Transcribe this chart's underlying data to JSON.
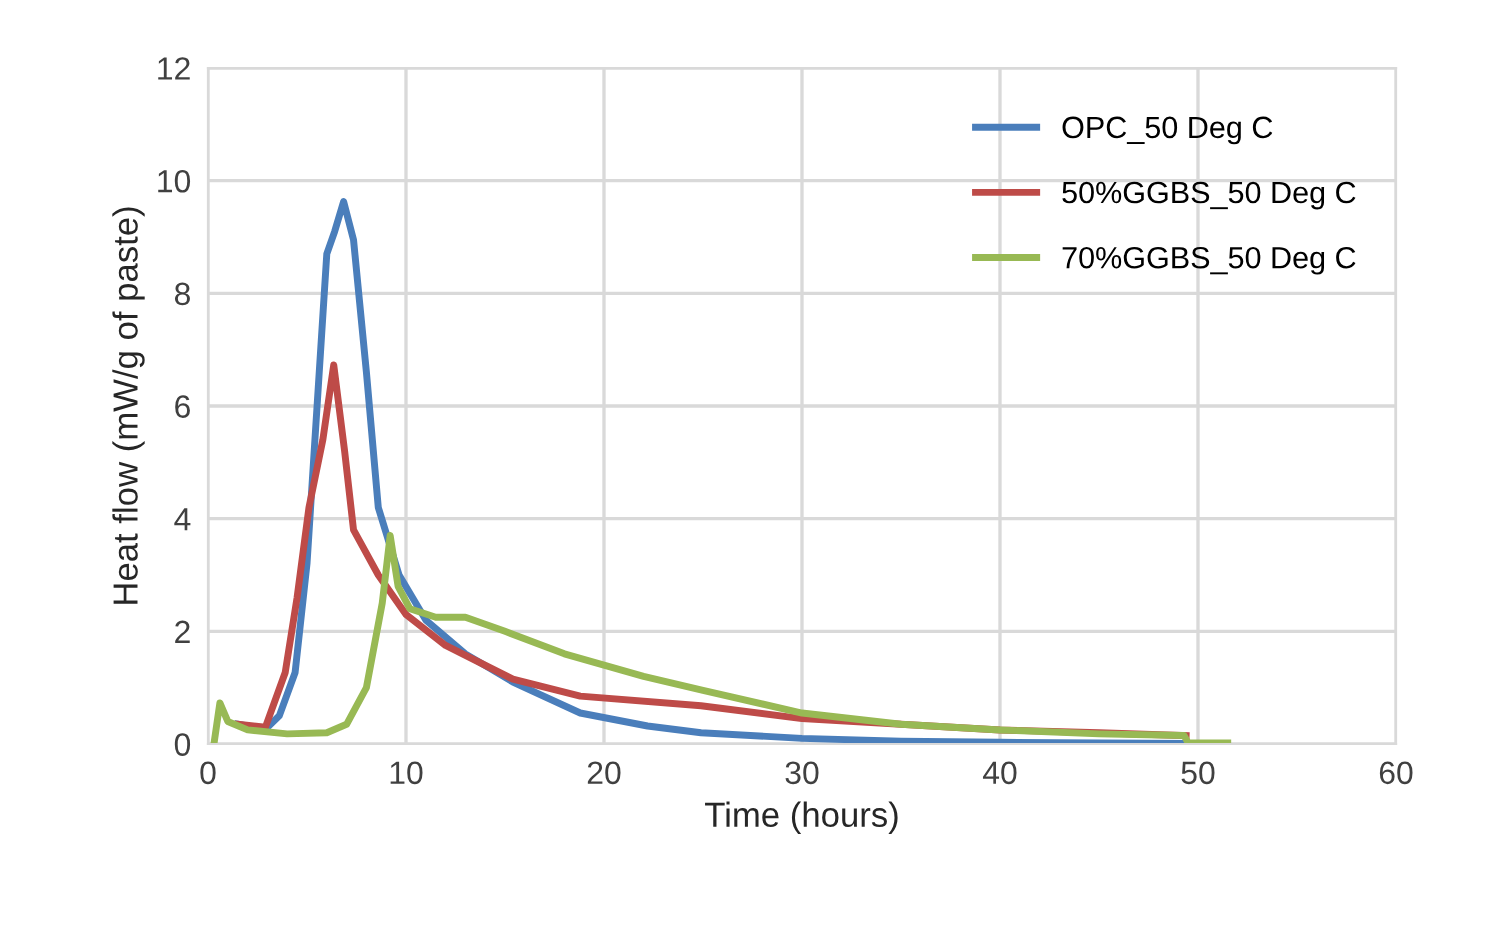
{
  "chart_data": {
    "type": "line",
    "xlabel": "Time (hours)",
    "ylabel": "Heat flow (mW/g of paste)",
    "xlim": [
      0,
      60
    ],
    "ylim": [
      0,
      12
    ],
    "xticks": [
      0,
      10,
      20,
      30,
      40,
      50,
      60
    ],
    "yticks": [
      0,
      2,
      4,
      6,
      8,
      10,
      12
    ],
    "grid": true,
    "legend": "top right",
    "marker": "none",
    "line_style": "solid",
    "series": [
      {
        "name": "OPC_50 Deg C",
        "color": "#4a7ebb",
        "x": [
          1.5,
          2.9,
          3.6,
          4.4,
          5.0,
          5.4,
          6.0,
          6.4,
          6.85,
          7.35,
          8.0,
          8.6,
          9.65,
          11.0,
          13.0,
          15.4,
          18.8,
          22.2,
          24.9,
          30,
          35,
          40,
          45,
          49.4
        ],
        "values": [
          0.35,
          0.26,
          0.5,
          1.27,
          3.2,
          5.4,
          8.7,
          9.1,
          9.63,
          8.95,
          6.6,
          4.2,
          3.0,
          2.2,
          1.6,
          1.1,
          0.55,
          0.32,
          0.2,
          0.1,
          0.05,
          0.03,
          0.02,
          0.01
        ]
      },
      {
        "name": "50%GGBS_50 Deg C",
        "color": "#be4b48",
        "x": [
          1.5,
          2.9,
          3.9,
          4.5,
          5.1,
          5.8,
          6.35,
          6.9,
          7.35,
          8.6,
          10,
          12,
          15.4,
          18.8,
          24.9,
          30,
          35,
          40,
          45,
          49.4
        ],
        "values": [
          0.35,
          0.3,
          1.27,
          2.6,
          4.2,
          5.4,
          6.73,
          5.2,
          3.8,
          3.0,
          2.3,
          1.75,
          1.15,
          0.85,
          0.68,
          0.45,
          0.35,
          0.25,
          0.2,
          0.15
        ]
      },
      {
        "name": "70%GGBS_50 Deg C",
        "color": "#98b954",
        "x": [
          0.3,
          0.6,
          1.0,
          2.0,
          4.0,
          6.0,
          7.0,
          8.0,
          8.8,
          9.2,
          9.6,
          10.2,
          11.5,
          13,
          15,
          18,
          22,
          25,
          30,
          35,
          40,
          45,
          49.3,
          49.5,
          51.5
        ],
        "values": [
          0.0,
          0.73,
          0.4,
          0.25,
          0.18,
          0.2,
          0.35,
          1.0,
          2.5,
          3.7,
          2.8,
          2.4,
          2.25,
          2.25,
          2.0,
          1.6,
          1.2,
          0.95,
          0.55,
          0.35,
          0.25,
          0.18,
          0.15,
          0.02,
          0.02
        ]
      }
    ]
  }
}
